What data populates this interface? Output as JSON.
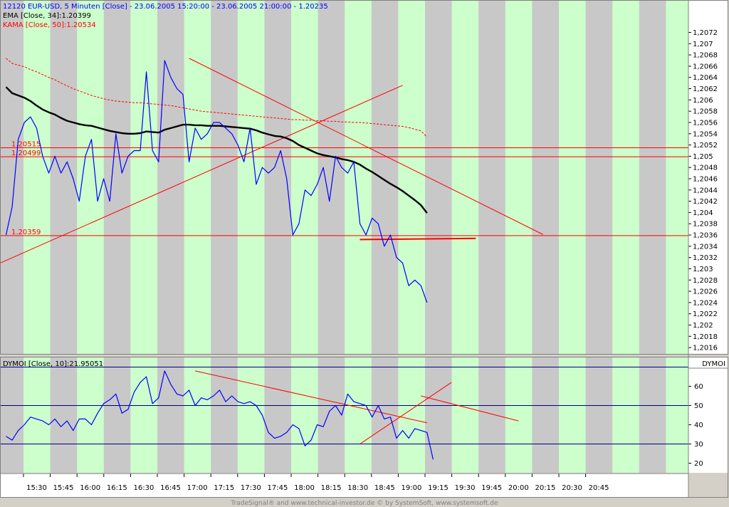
{
  "header": {
    "main_title": "12120  EUR-USD, 5 Minuten [Close] - 23.06.2005 15:20:00 - 23.06.2005 21:00:00 - 1.20235",
    "ema_label": "EMA [Close, 34]:1.20399",
    "kama_label": "KAMA [Close, 50]:1.20534",
    "dymoi_label": "DYMOI [Close, 10]:21.95051",
    "dymoi_axis_title": "DYMOI"
  },
  "footer": "TradeSignal® and www.technical-investor.de © by  SystemSoft, www.systemsoft.de",
  "colors": {
    "price": "#0000ff",
    "ema": "#000000",
    "kama": "#ff0000",
    "trendline": "#ff0000",
    "band_green": "#ccffcc",
    "band_gray": "#c8c8c8",
    "dymoi_level": "#000080"
  },
  "chart_data": [
    {
      "type": "line",
      "title": "12120  EUR-USD, 5 Minuten [Close] - 23.06.2005 15:20:00 - 23.06.2005 21:00:00 - 1.20235",
      "time_labels": [
        "15:30",
        "15:45",
        "16:00",
        "16:15",
        "16:30",
        "16:45",
        "17:00",
        "17:15",
        "17:30",
        "17:45",
        "18:00",
        "18:15",
        "18:30",
        "18:45",
        "19:00",
        "19:15",
        "19:30",
        "19:45",
        "20:00",
        "20:15",
        "20:30",
        "20:45"
      ],
      "ylim": [
        1.2015,
        1.2077
      ],
      "y_ticks": [
        "1,2072",
        "1,207",
        "1,2068",
        "1,2066",
        "1,2064",
        "1,2062",
        "1,206",
        "1,2058",
        "1,2056",
        "1,2054",
        "1,2052",
        "1,205",
        "1,2048",
        "1,2046",
        "1,2044",
        "1,2042",
        "1,204",
        "1,2038",
        "1,2036",
        "1,2034",
        "1,2032",
        "1,203",
        "1,2028",
        "1,2026",
        "1,2024",
        "1,2022",
        "1,202",
        "1,2018",
        "1,2016"
      ],
      "series": [
        {
          "name": "12120  EUR-USD, 5 Minuten [Close]",
          "values": [
            1.2036,
            1.2041,
            1.2053,
            1.2056,
            1.2057,
            1.2055,
            1.205,
            1.2047,
            1.205,
            1.2047,
            1.2049,
            1.2046,
            1.2042,
            1.205,
            1.2053,
            1.2042,
            1.2046,
            1.2042,
            1.2054,
            1.2047,
            1.205,
            1.2051,
            1.2051,
            1.2065,
            1.2051,
            1.2049,
            1.2067,
            1.2064,
            1.2062,
            1.2061,
            1.2049,
            1.2055,
            1.2053,
            1.2054,
            1.2056,
            1.2056,
            1.2055,
            1.2054,
            1.2052,
            1.2049,
            1.2055,
            1.2045,
            1.2048,
            1.2047,
            1.2048,
            1.2051,
            1.2046,
            1.2036,
            1.2038,
            1.2044,
            1.2043,
            1.2045,
            1.2048,
            1.2042,
            1.205,
            1.2048,
            1.2047,
            1.2049,
            1.2038,
            1.2036,
            1.2039,
            1.2038,
            1.2034,
            1.2036,
            1.2032,
            1.2031,
            1.2027,
            1.2028,
            1.2027,
            1.2024
          ]
        },
        {
          "name": "EMA [Close, 34]:1.20399",
          "values": [
            1.20623,
            1.20612,
            1.20608,
            1.20604,
            1.20598,
            1.2059,
            1.20583,
            1.20578,
            1.20574,
            1.20568,
            1.20563,
            1.2056,
            1.20557,
            1.20555,
            1.20554,
            1.20551,
            1.20548,
            1.20545,
            1.20543,
            1.20541,
            1.2054,
            1.2054,
            1.20541,
            1.20544,
            1.20543,
            1.20542,
            1.20547,
            1.2055,
            1.20553,
            1.20556,
            1.20556,
            1.20555,
            1.20555,
            1.20554,
            1.20554,
            1.20554,
            1.20553,
            1.20552,
            1.20551,
            1.2055,
            1.20549,
            1.20546,
            1.20542,
            1.20539,
            1.20536,
            1.20535,
            1.20532,
            1.20527,
            1.2052,
            1.20515,
            1.2051,
            1.20505,
            1.20502,
            1.205,
            1.20498,
            1.20495,
            1.20493,
            1.2049,
            1.20485,
            1.20478,
            1.20472,
            1.20465,
            1.20458,
            1.20451,
            1.20445,
            1.20438,
            1.2043,
            1.20422,
            1.20413,
            1.20399
          ]
        },
        {
          "name": "KAMA [Close, 50]:1.20534",
          "values": [
            1.20674,
            1.20665,
            1.20662,
            1.20659,
            1.20654,
            1.2065,
            1.20645,
            1.2064,
            1.20636,
            1.2063,
            1.20625,
            1.2062,
            1.20616,
            1.20612,
            1.20608,
            1.20605,
            1.20602,
            1.206,
            1.20598,
            1.20597,
            1.20596,
            1.20595,
            1.20595,
            1.20594,
            1.20593,
            1.20592,
            1.20591,
            1.2059,
            1.20588,
            1.20586,
            1.20584,
            1.20582,
            1.2058,
            1.20579,
            1.20578,
            1.20577,
            1.20576,
            1.20575,
            1.20574,
            1.20573,
            1.20572,
            1.20571,
            1.2057,
            1.20569,
            1.20568,
            1.20567,
            1.20566,
            1.20565,
            1.20565,
            1.20564,
            1.20564,
            1.20563,
            1.20563,
            1.20562,
            1.20562,
            1.20561,
            1.20561,
            1.2056,
            1.2056,
            1.20559,
            1.20558,
            1.20557,
            1.20556,
            1.20555,
            1.20554,
            1.20553,
            1.20551,
            1.20548,
            1.20545,
            1.20534
          ]
        }
      ],
      "levels": [
        {
          "label": "1.20515",
          "value": 1.20515
        },
        {
          "label": "1.20499",
          "value": 1.20499
        },
        {
          "label": "1.20359",
          "value": 1.20359
        }
      ],
      "trendlines": [
        {
          "from": [
            -1,
            1.2031
          ],
          "to": [
            65,
            1.20626
          ]
        },
        {
          "from": [
            30,
            1.20674
          ],
          "to": [
            88,
            1.20361
          ]
        },
        {
          "from": [
            58,
            1.20352
          ],
          "to": [
            77,
            1.20354
          ]
        }
      ]
    },
    {
      "type": "line",
      "title": "DYMOI [Close, 10]:21.95051",
      "ylim": [
        15,
        75
      ],
      "y_ticks": [
        20,
        30,
        40,
        50,
        60
      ],
      "levels": [
        70,
        50,
        30
      ],
      "series": [
        {
          "name": "DYMOI [Close, 10]:21.95051",
          "values": [
            34,
            32,
            37,
            40,
            44,
            43,
            42,
            40,
            43,
            39,
            42,
            37,
            43,
            43,
            40,
            46,
            51,
            53,
            56,
            46,
            48,
            57,
            62,
            65,
            51,
            54,
            68,
            61,
            56,
            55,
            58,
            50,
            54,
            53,
            55,
            58,
            52,
            55,
            52,
            51,
            52,
            50,
            45,
            36,
            33,
            34,
            36,
            40,
            38,
            29,
            32,
            40,
            39,
            47,
            50,
            45,
            56,
            52,
            51,
            50,
            44,
            50,
            43,
            44,
            33,
            37,
            33,
            38,
            37,
            36,
            21.95
          ]
        }
      ],
      "trendlines": [
        {
          "from": [
            31,
            68
          ],
          "to": [
            69,
            41
          ]
        },
        {
          "from": [
            58,
            30
          ],
          "to": [
            73,
            62
          ]
        },
        {
          "from": [
            68,
            55
          ],
          "to": [
            84,
            42
          ]
        }
      ]
    }
  ]
}
